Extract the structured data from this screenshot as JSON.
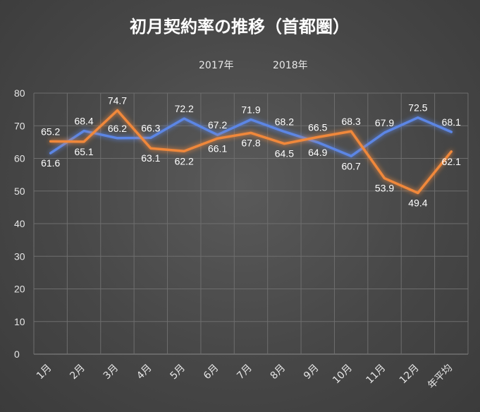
{
  "chart_data": {
    "type": "line",
    "title": "初月契約率の推移（首都圏）",
    "categories": [
      "1月",
      "2月",
      "3月",
      "4月",
      "5月",
      "6月",
      "7月",
      "8月",
      "9月",
      "10月",
      "11月",
      "12月",
      "年平均"
    ],
    "series": [
      {
        "name": "2017年",
        "color": "#5b86e5",
        "values": [
          61.6,
          68.4,
          66.2,
          66.3,
          72.2,
          67.2,
          71.9,
          68.2,
          64.9,
          60.7,
          67.9,
          72.5,
          68.1
        ]
      },
      {
        "name": "2018年",
        "color": "#f0883a",
        "values": [
          65.2,
          65.1,
          74.7,
          63.1,
          62.2,
          66.1,
          67.8,
          64.5,
          66.5,
          68.3,
          53.9,
          49.4,
          62.1
        ]
      }
    ],
    "ylim": [
      0,
      80
    ],
    "yticks": [
      0,
      10,
      20,
      30,
      40,
      50,
      60,
      70,
      80
    ],
    "grid": true,
    "legend_position": "top-center",
    "xlabel": "",
    "ylabel": ""
  }
}
